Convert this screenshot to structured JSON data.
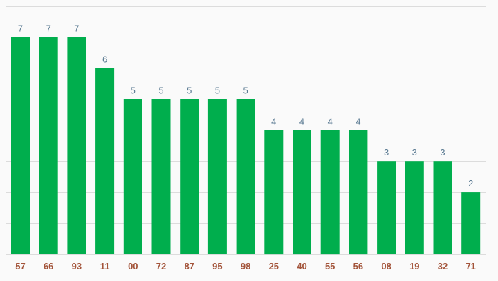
{
  "chart_data": {
    "type": "bar",
    "categories": [
      "57",
      "66",
      "93",
      "11",
      "00",
      "72",
      "87",
      "95",
      "98",
      "25",
      "40",
      "55",
      "56",
      "08",
      "19",
      "32",
      "71"
    ],
    "values": [
      7,
      7,
      7,
      6,
      5,
      5,
      5,
      5,
      5,
      4,
      4,
      4,
      4,
      3,
      3,
      3,
      2
    ],
    "title": "",
    "xlabel": "",
    "ylabel": "",
    "ylim": [
      0,
      8
    ],
    "grid": true,
    "legend": "none",
    "data_labels": true
  },
  "colors": {
    "bar": "#00ae4d",
    "data_label": "#5a7a92",
    "tick_label": "#a3543a",
    "grid": "#dcdcdc",
    "background": "#fafafa"
  }
}
